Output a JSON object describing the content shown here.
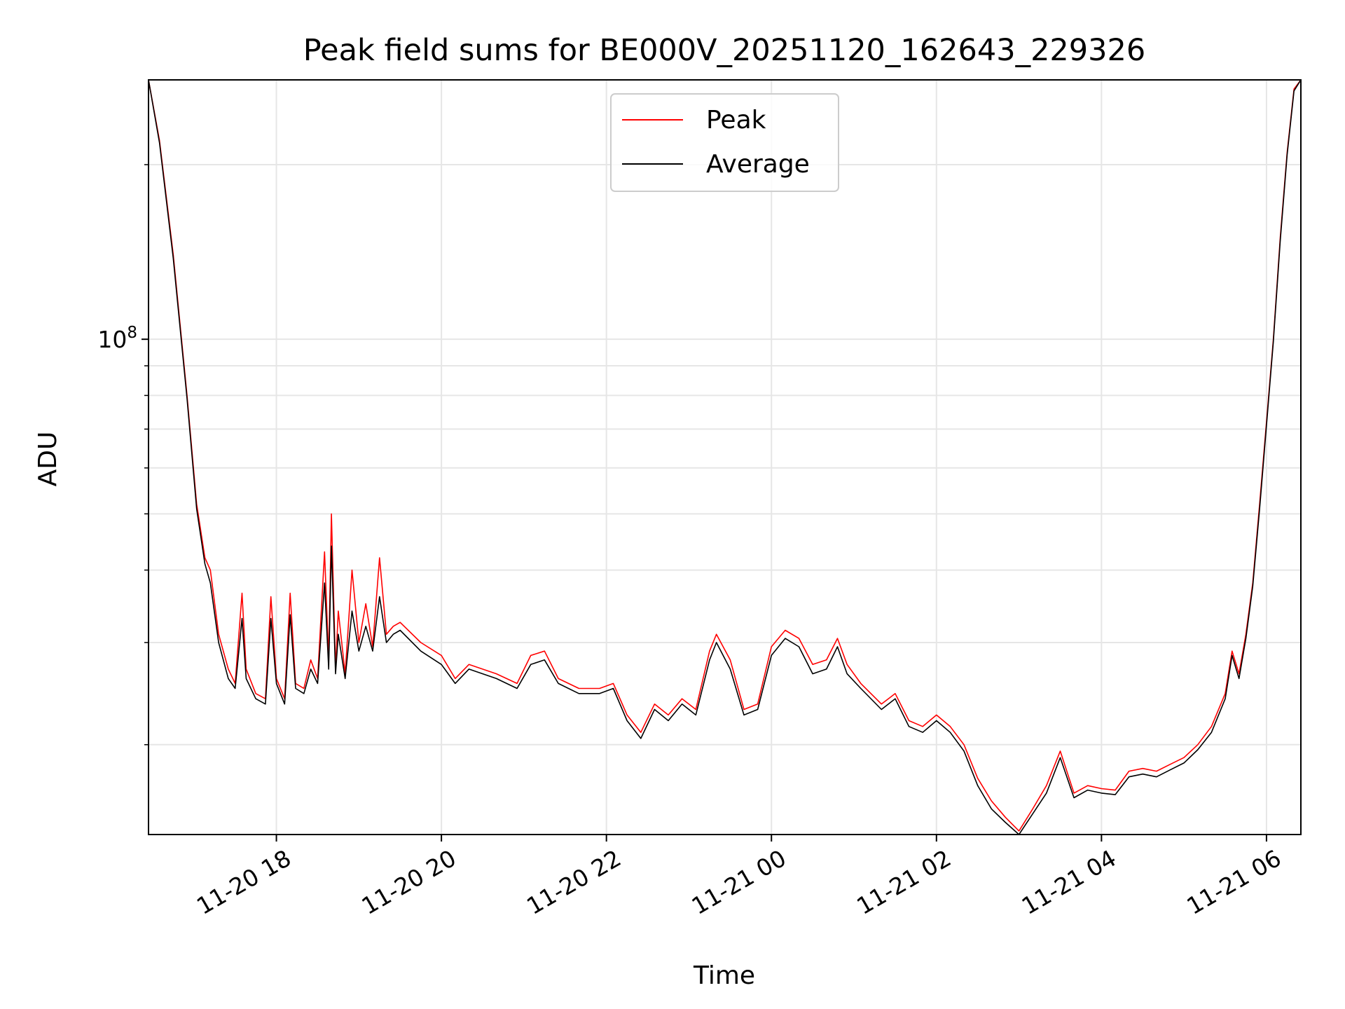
{
  "chart_data": {
    "type": "line",
    "title": "Peak field sums for BE000V_20251120_162643_229326",
    "xlabel": "Time",
    "ylabel": "ADU",
    "yscale": "log",
    "grid": true,
    "legend_position": "upper center",
    "xlim": [
      "2025-11-20 16:27",
      "2025-11-21 06:25"
    ],
    "ylim": [
      14000000,
      280000000
    ],
    "x_ticks": [
      {
        "label": "11-20 18",
        "time": "2025-11-20 18:00"
      },
      {
        "label": "11-20 20",
        "time": "2025-11-20 20:00"
      },
      {
        "label": "11-20 22",
        "time": "2025-11-20 22:00"
      },
      {
        "label": "11-21 00",
        "time": "2025-11-21 00:00"
      },
      {
        "label": "11-21 02",
        "time": "2025-11-21 02:00"
      },
      {
        "label": "11-21 04",
        "time": "2025-11-21 04:00"
      },
      {
        "label": "11-21 06",
        "time": "2025-11-21 06:00"
      }
    ],
    "y_major_ticks": [
      {
        "base": "10",
        "exp": "8",
        "value": 100000000
      }
    ],
    "y_minor_ticks": [
      20000000,
      30000000,
      40000000,
      50000000,
      60000000,
      70000000,
      80000000,
      90000000,
      200000000
    ],
    "series": [
      {
        "name": "Peak",
        "color": "#ff0000",
        "points": [
          [
            "2025-11-20 16:27",
            280000000
          ],
          [
            "2025-11-20 16:35",
            220000000
          ],
          [
            "2025-11-20 16:45",
            140000000
          ],
          [
            "2025-11-20 16:55",
            80000000
          ],
          [
            "2025-11-20 17:02",
            52000000
          ],
          [
            "2025-11-20 17:08",
            42000000
          ],
          [
            "2025-11-20 17:12",
            40000000
          ],
          [
            "2025-11-20 17:18",
            31000000
          ],
          [
            "2025-11-20 17:25",
            27000000
          ],
          [
            "2025-11-20 17:30",
            25500000
          ],
          [
            "2025-11-20 17:35",
            36500000
          ],
          [
            "2025-11-20 17:38",
            27000000
          ],
          [
            "2025-11-20 17:45",
            24500000
          ],
          [
            "2025-11-20 17:52",
            24000000
          ],
          [
            "2025-11-20 17:56",
            36000000
          ],
          [
            "2025-11-20 18:00",
            26000000
          ],
          [
            "2025-11-20 18:06",
            24000000
          ],
          [
            "2025-11-20 18:10",
            36500000
          ],
          [
            "2025-11-20 18:14",
            25500000
          ],
          [
            "2025-11-20 18:20",
            25000000
          ],
          [
            "2025-11-20 18:25",
            28000000
          ],
          [
            "2025-11-20 18:30",
            26000000
          ],
          [
            "2025-11-20 18:35",
            43000000
          ],
          [
            "2025-11-20 18:38",
            28000000
          ],
          [
            "2025-11-20 18:40",
            50000000
          ],
          [
            "2025-11-20 18:43",
            27000000
          ],
          [
            "2025-11-20 18:45",
            34000000
          ],
          [
            "2025-11-20 18:50",
            26500000
          ],
          [
            "2025-11-20 18:55",
            40000000
          ],
          [
            "2025-11-20 19:00",
            30000000
          ],
          [
            "2025-11-20 19:05",
            35000000
          ],
          [
            "2025-11-20 19:10",
            29500000
          ],
          [
            "2025-11-20 19:15",
            42000000
          ],
          [
            "2025-11-20 19:20",
            31000000
          ],
          [
            "2025-11-20 19:25",
            32000000
          ],
          [
            "2025-11-20 19:30",
            32500000
          ],
          [
            "2025-11-20 19:45",
            30000000
          ],
          [
            "2025-11-20 20:00",
            28500000
          ],
          [
            "2025-11-20 20:10",
            26000000
          ],
          [
            "2025-11-20 20:20",
            27500000
          ],
          [
            "2025-11-20 20:40",
            26500000
          ],
          [
            "2025-11-20 20:55",
            25500000
          ],
          [
            "2025-11-20 21:05",
            28500000
          ],
          [
            "2025-11-20 21:15",
            29000000
          ],
          [
            "2025-11-20 21:25",
            26000000
          ],
          [
            "2025-11-20 21:40",
            25000000
          ],
          [
            "2025-11-20 21:55",
            25000000
          ],
          [
            "2025-11-20 22:05",
            25500000
          ],
          [
            "2025-11-20 22:15",
            22500000
          ],
          [
            "2025-11-20 22:25",
            21000000
          ],
          [
            "2025-11-20 22:35",
            23500000
          ],
          [
            "2025-11-20 22:45",
            22500000
          ],
          [
            "2025-11-20 22:55",
            24000000
          ],
          [
            "2025-11-20 23:05",
            23000000
          ],
          [
            "2025-11-20 23:15",
            29000000
          ],
          [
            "2025-11-20 23:20",
            31000000
          ],
          [
            "2025-11-20 23:30",
            28000000
          ],
          [
            "2025-11-20 23:40",
            23000000
          ],
          [
            "2025-11-20 23:50",
            23500000
          ],
          [
            "2025-11-21 00:00",
            29500000
          ],
          [
            "2025-11-21 00:10",
            31500000
          ],
          [
            "2025-11-21 00:20",
            30500000
          ],
          [
            "2025-11-21 00:30",
            27500000
          ],
          [
            "2025-11-21 00:40",
            28000000
          ],
          [
            "2025-11-21 00:48",
            30500000
          ],
          [
            "2025-11-21 00:55",
            27500000
          ],
          [
            "2025-11-21 01:05",
            25500000
          ],
          [
            "2025-11-21 01:20",
            23500000
          ],
          [
            "2025-11-21 01:30",
            24500000
          ],
          [
            "2025-11-21 01:40",
            22000000
          ],
          [
            "2025-11-21 01:50",
            21500000
          ],
          [
            "2025-11-21 02:00",
            22500000
          ],
          [
            "2025-11-21 02:10",
            21500000
          ],
          [
            "2025-11-21 02:20",
            20000000
          ],
          [
            "2025-11-21 02:30",
            17500000
          ],
          [
            "2025-11-21 02:40",
            16000000
          ],
          [
            "2025-11-21 02:50",
            15000000
          ],
          [
            "2025-11-21 03:00",
            14200000
          ],
          [
            "2025-11-21 03:10",
            15500000
          ],
          [
            "2025-11-21 03:20",
            17000000
          ],
          [
            "2025-11-21 03:30",
            19500000
          ],
          [
            "2025-11-21 03:40",
            16500000
          ],
          [
            "2025-11-21 03:50",
            17000000
          ],
          [
            "2025-11-21 04:00",
            16800000
          ],
          [
            "2025-11-21 04:10",
            16700000
          ],
          [
            "2025-11-21 04:20",
            18000000
          ],
          [
            "2025-11-21 04:30",
            18200000
          ],
          [
            "2025-11-21 04:40",
            18000000
          ],
          [
            "2025-11-21 04:50",
            18500000
          ],
          [
            "2025-11-21 05:00",
            19000000
          ],
          [
            "2025-11-21 05:10",
            20000000
          ],
          [
            "2025-11-21 05:20",
            21500000
          ],
          [
            "2025-11-21 05:30",
            24500000
          ],
          [
            "2025-11-21 05:35",
            29000000
          ],
          [
            "2025-11-21 05:40",
            26500000
          ],
          [
            "2025-11-21 05:45",
            31000000
          ],
          [
            "2025-11-21 05:50",
            38000000
          ],
          [
            "2025-11-21 05:55",
            52000000
          ],
          [
            "2025-11-21 06:00",
            72000000
          ],
          [
            "2025-11-21 06:05",
            100000000
          ],
          [
            "2025-11-21 06:10",
            150000000
          ],
          [
            "2025-11-21 06:15",
            210000000
          ],
          [
            "2025-11-21 06:20",
            270000000
          ],
          [
            "2025-11-21 06:25",
            280000000
          ]
        ]
      },
      {
        "name": "Average",
        "color": "#000000",
        "points": [
          [
            "2025-11-20 16:27",
            280000000
          ],
          [
            "2025-11-20 16:35",
            218000000
          ],
          [
            "2025-11-20 16:45",
            138000000
          ],
          [
            "2025-11-20 16:55",
            79000000
          ],
          [
            "2025-11-20 17:02",
            51000000
          ],
          [
            "2025-11-20 17:08",
            41000000
          ],
          [
            "2025-11-20 17:12",
            38000000
          ],
          [
            "2025-11-20 17:18",
            30000000
          ],
          [
            "2025-11-20 17:25",
            26000000
          ],
          [
            "2025-11-20 17:30",
            25000000
          ],
          [
            "2025-11-20 17:35",
            33000000
          ],
          [
            "2025-11-20 17:38",
            26000000
          ],
          [
            "2025-11-20 17:45",
            24000000
          ],
          [
            "2025-11-20 17:52",
            23500000
          ],
          [
            "2025-11-20 17:56",
            33000000
          ],
          [
            "2025-11-20 18:00",
            25500000
          ],
          [
            "2025-11-20 18:06",
            23500000
          ],
          [
            "2025-11-20 18:10",
            33500000
          ],
          [
            "2025-11-20 18:14",
            25000000
          ],
          [
            "2025-11-20 18:20",
            24500000
          ],
          [
            "2025-11-20 18:25",
            27000000
          ],
          [
            "2025-11-20 18:30",
            25500000
          ],
          [
            "2025-11-20 18:35",
            38000000
          ],
          [
            "2025-11-20 18:38",
            27000000
          ],
          [
            "2025-11-20 18:40",
            44000000
          ],
          [
            "2025-11-20 18:43",
            26500000
          ],
          [
            "2025-11-20 18:45",
            31000000
          ],
          [
            "2025-11-20 18:50",
            26000000
          ],
          [
            "2025-11-20 18:55",
            34000000
          ],
          [
            "2025-11-20 19:00",
            29000000
          ],
          [
            "2025-11-20 19:05",
            32000000
          ],
          [
            "2025-11-20 19:10",
            29000000
          ],
          [
            "2025-11-20 19:15",
            36000000
          ],
          [
            "2025-11-20 19:20",
            30000000
          ],
          [
            "2025-11-20 19:25",
            31000000
          ],
          [
            "2025-11-20 19:30",
            31500000
          ],
          [
            "2025-11-20 19:45",
            29000000
          ],
          [
            "2025-11-20 20:00",
            27500000
          ],
          [
            "2025-11-20 20:10",
            25500000
          ],
          [
            "2025-11-20 20:20",
            27000000
          ],
          [
            "2025-11-20 20:40",
            26000000
          ],
          [
            "2025-11-20 20:55",
            25000000
          ],
          [
            "2025-11-20 21:05",
            27500000
          ],
          [
            "2025-11-20 21:15",
            28000000
          ],
          [
            "2025-11-20 21:25",
            25500000
          ],
          [
            "2025-11-20 21:40",
            24500000
          ],
          [
            "2025-11-20 21:55",
            24500000
          ],
          [
            "2025-11-20 22:05",
            25000000
          ],
          [
            "2025-11-20 22:15",
            22000000
          ],
          [
            "2025-11-20 22:25",
            20500000
          ],
          [
            "2025-11-20 22:35",
            23000000
          ],
          [
            "2025-11-20 22:45",
            22000000
          ],
          [
            "2025-11-20 22:55",
            23500000
          ],
          [
            "2025-11-20 23:05",
            22500000
          ],
          [
            "2025-11-20 23:15",
            28000000
          ],
          [
            "2025-11-20 23:20",
            30000000
          ],
          [
            "2025-11-20 23:30",
            27000000
          ],
          [
            "2025-11-20 23:40",
            22500000
          ],
          [
            "2025-11-20 23:50",
            23000000
          ],
          [
            "2025-11-21 00:00",
            28500000
          ],
          [
            "2025-11-21 00:10",
            30500000
          ],
          [
            "2025-11-21 00:20",
            29500000
          ],
          [
            "2025-11-21 00:30",
            26500000
          ],
          [
            "2025-11-21 00:40",
            27000000
          ],
          [
            "2025-11-21 00:48",
            29500000
          ],
          [
            "2025-11-21 00:55",
            26500000
          ],
          [
            "2025-11-21 01:05",
            25000000
          ],
          [
            "2025-11-21 01:20",
            23000000
          ],
          [
            "2025-11-21 01:30",
            24000000
          ],
          [
            "2025-11-21 01:40",
            21500000
          ],
          [
            "2025-11-21 01:50",
            21000000
          ],
          [
            "2025-11-21 02:00",
            22000000
          ],
          [
            "2025-11-21 02:10",
            21000000
          ],
          [
            "2025-11-21 02:20",
            19500000
          ],
          [
            "2025-11-21 02:30",
            17000000
          ],
          [
            "2025-11-21 02:40",
            15500000
          ],
          [
            "2025-11-21 02:50",
            14700000
          ],
          [
            "2025-11-21 03:00",
            14000000
          ],
          [
            "2025-11-21 03:10",
            15200000
          ],
          [
            "2025-11-21 03:20",
            16500000
          ],
          [
            "2025-11-21 03:30",
            19000000
          ],
          [
            "2025-11-21 03:40",
            16200000
          ],
          [
            "2025-11-21 03:50",
            16700000
          ],
          [
            "2025-11-21 04:00",
            16500000
          ],
          [
            "2025-11-21 04:10",
            16400000
          ],
          [
            "2025-11-21 04:20",
            17600000
          ],
          [
            "2025-11-21 04:30",
            17800000
          ],
          [
            "2025-11-21 04:40",
            17600000
          ],
          [
            "2025-11-21 04:50",
            18100000
          ],
          [
            "2025-11-21 05:00",
            18600000
          ],
          [
            "2025-11-21 05:10",
            19600000
          ],
          [
            "2025-11-21 05:20",
            21000000
          ],
          [
            "2025-11-21 05:30",
            24000000
          ],
          [
            "2025-11-21 05:35",
            28500000
          ],
          [
            "2025-11-21 05:40",
            26000000
          ],
          [
            "2025-11-21 05:45",
            30500000
          ],
          [
            "2025-11-21 05:50",
            37500000
          ],
          [
            "2025-11-21 05:55",
            51000000
          ],
          [
            "2025-11-21 06:00",
            71000000
          ],
          [
            "2025-11-21 06:05",
            99000000
          ],
          [
            "2025-11-21 06:10",
            148000000
          ],
          [
            "2025-11-21 06:15",
            208000000
          ],
          [
            "2025-11-21 06:20",
            268000000
          ],
          [
            "2025-11-21 06:25",
            280000000
          ]
        ]
      }
    ]
  }
}
